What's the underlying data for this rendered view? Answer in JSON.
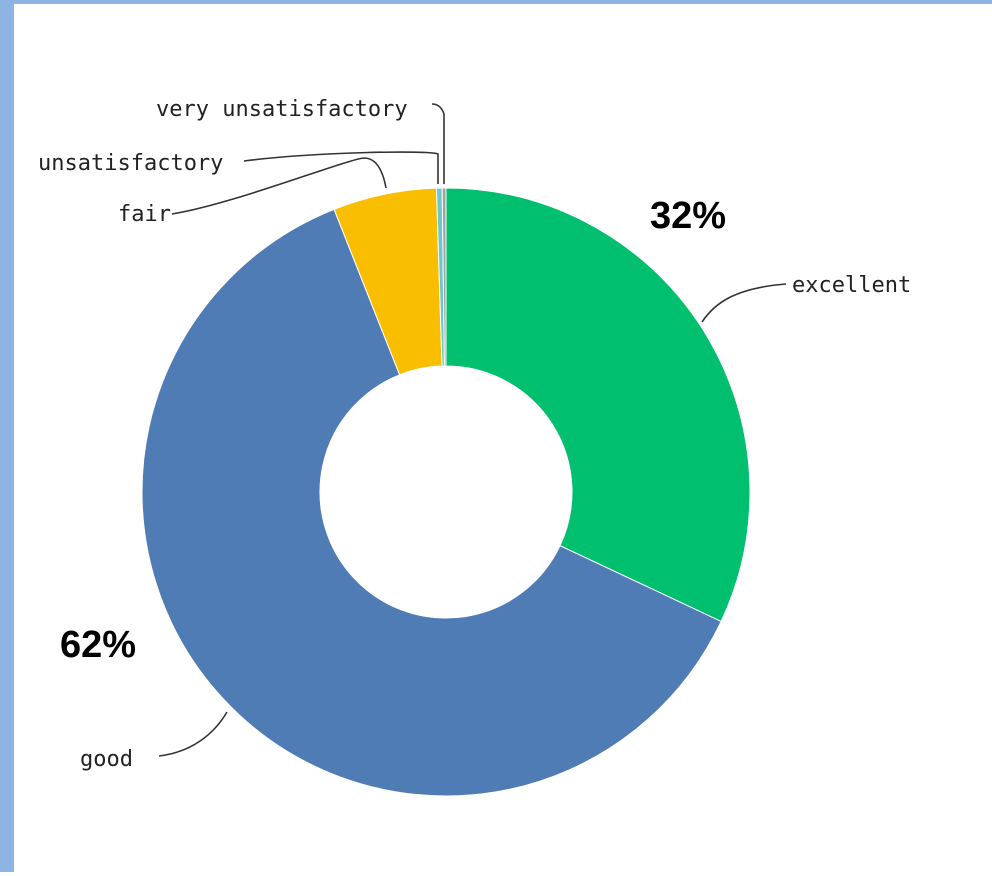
{
  "chart_data": {
    "type": "pie",
    "variant": "donut",
    "title": "",
    "slices": [
      {
        "label": "excellent",
        "value": 32,
        "color": "#00bf6f"
      },
      {
        "label": "good",
        "value": 62,
        "color": "#507cb6"
      },
      {
        "label": "fair",
        "value": 5.5,
        "color": "#f9be00"
      },
      {
        "label": "unsatisfactory",
        "value": 0.3,
        "color": "#6bc8cd"
      },
      {
        "label": "very unsatisfactory",
        "value": 0.2,
        "color": "#a1a1a1"
      }
    ],
    "data_labels": {
      "excellent": "32%",
      "good": "62%"
    },
    "legend": "none"
  }
}
